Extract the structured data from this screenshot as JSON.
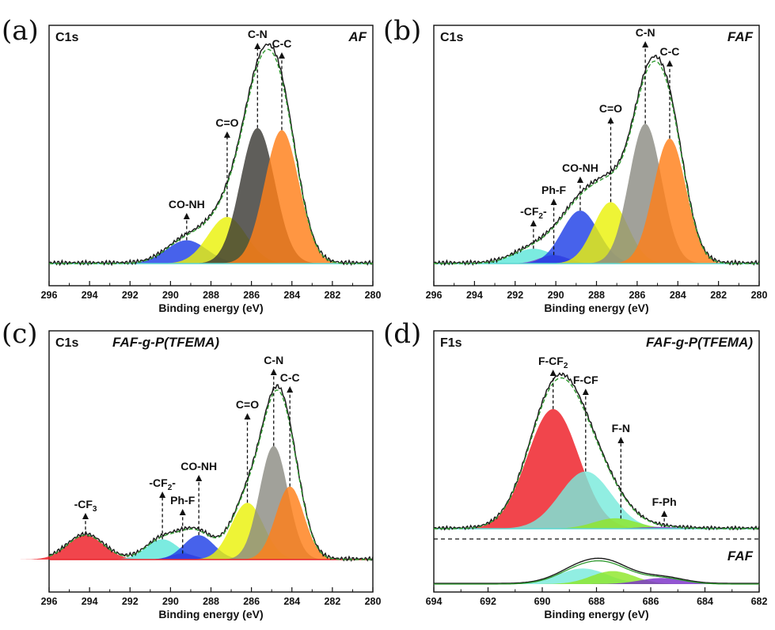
{
  "chart_data": [
    {
      "type": "area",
      "panel_label": "(a)",
      "core_level": "C1s",
      "sample": "AF",
      "xlabel": "Binding energy (eV)",
      "ylabel": "",
      "xlim": [
        296,
        280
      ],
      "xticks": [
        "296",
        "294",
        "292",
        "290",
        "288",
        "286",
        "284",
        "282",
        "280"
      ],
      "ylim": [
        0,
        1.05
      ],
      "components": [
        {
          "label": "CO-NH",
          "center": 289.2,
          "height": 0.11,
          "width": 1.0,
          "color": "#1f3fe6"
        },
        {
          "label": "C=O",
          "center": 287.2,
          "height": 0.22,
          "width": 0.95,
          "color": "#eaf20a"
        },
        {
          "label": "C-N",
          "center": 285.7,
          "height": 0.64,
          "width": 0.85,
          "color": "#3c3a36"
        },
        {
          "label": "C-C",
          "center": 284.5,
          "height": 0.63,
          "width": 0.85,
          "color": "#ff7f18"
        }
      ],
      "annotations": [
        {
          "text": "CO-NH",
          "x": 289.2
        },
        {
          "text": "C=O",
          "x": 287.2
        },
        {
          "text": "C-N",
          "x": 285.7
        },
        {
          "text": "C-C",
          "x": 284.5
        }
      ]
    },
    {
      "type": "area",
      "panel_label": "(b)",
      "core_level": "C1s",
      "sample": "FAF",
      "xlabel": "Binding energy (eV)",
      "ylabel": "",
      "xlim": [
        296,
        280
      ],
      "xticks": [
        "296",
        "294",
        "292",
        "290",
        "288",
        "286",
        "284",
        "282",
        "280"
      ],
      "ylim": [
        0,
        1.05
      ],
      "components": [
        {
          "label": "-CF2-",
          "center": 291.1,
          "height": 0.07,
          "width": 1.0,
          "color": "#5ee6d9"
        },
        {
          "label": "Ph-F",
          "center": 290.1,
          "height": 0.04,
          "width": 0.7,
          "color": "#7b2fc9"
        },
        {
          "label": "CO-NH",
          "center": 288.8,
          "height": 0.25,
          "width": 0.9,
          "color": "#1f3fe6"
        },
        {
          "label": "C=O",
          "center": 287.3,
          "height": 0.29,
          "width": 0.85,
          "color": "#eaf20a"
        },
        {
          "label": "C-N",
          "center": 285.6,
          "height": 0.66,
          "width": 0.8,
          "color": "#8c8c84"
        },
        {
          "label": "C-C",
          "center": 284.4,
          "height": 0.59,
          "width": 0.8,
          "color": "#ff7f18"
        }
      ],
      "annotations": [
        {
          "text": "-CF",
          "sub": "2",
          "suffix": "-",
          "x": 291.1
        },
        {
          "text": "Ph-F",
          "x": 290.1
        },
        {
          "text": "CO-NH",
          "x": 288.8
        },
        {
          "text": "C=O",
          "x": 287.3
        },
        {
          "text": "C-N",
          "x": 285.6
        },
        {
          "text": "C-C",
          "x": 284.4
        }
      ]
    },
    {
      "type": "area",
      "panel_label": "(c)",
      "core_level": "C1s",
      "sample": "FAF-g-P(TFEMA)",
      "xlabel": "Binding energy (eV)",
      "ylabel": "",
      "xlim": [
        296,
        280
      ],
      "xticks": [
        "296",
        "294",
        "292",
        "290",
        "288",
        "286",
        "284",
        "282",
        "280"
      ],
      "ylim": [
        0,
        1.05
      ],
      "components": [
        {
          "label": "-CF3",
          "center": 294.2,
          "height": 0.12,
          "width": 0.9,
          "color": "#ee1c24"
        },
        {
          "label": "-CF2-",
          "center": 290.4,
          "height": 0.1,
          "width": 0.8,
          "color": "#5ee6d9"
        },
        {
          "label": "Ph-F",
          "center": 289.4,
          "height": 0.03,
          "width": 0.6,
          "color": "#7b2fc9"
        },
        {
          "label": "CO-NH",
          "center": 288.6,
          "height": 0.12,
          "width": 0.75,
          "color": "#1f3fe6"
        },
        {
          "label": "C=O",
          "center": 286.2,
          "height": 0.28,
          "width": 0.8,
          "color": "#eaf20a"
        },
        {
          "label": "C-N",
          "center": 284.9,
          "height": 0.56,
          "width": 0.7,
          "color": "#8c8c84"
        },
        {
          "label": "C-C",
          "center": 284.1,
          "height": 0.36,
          "width": 0.7,
          "color": "#ff7f18"
        }
      ],
      "annotations": [
        {
          "text": "-CF",
          "sub": "3",
          "suffix": "",
          "x": 294.2
        },
        {
          "text": "-CF",
          "sub": "2",
          "suffix": "-",
          "x": 290.4
        },
        {
          "text": "Ph-F",
          "x": 289.4
        },
        {
          "text": "CO-NH",
          "x": 288.6
        },
        {
          "text": "C=O",
          "x": 286.2
        },
        {
          "text": "C-N",
          "x": 284.9
        },
        {
          "text": "C-C",
          "x": 284.1
        }
      ]
    },
    {
      "type": "area",
      "panel_label": "(d)",
      "core_level": "F1s",
      "sample": "FAF-g-P(TFEMA)",
      "second_sample": "FAF",
      "xlabel": "Binding energy (eV)",
      "ylabel": "",
      "xlim": [
        694,
        682
      ],
      "xticks": [
        "694",
        "692",
        "690",
        "688",
        "686",
        "684",
        "682"
      ],
      "ylim": [
        0,
        1.05
      ],
      "components": [
        {
          "label": "F-CF2",
          "center": 689.6,
          "height": 0.69,
          "width": 0.95,
          "color": "#ee1c24"
        },
        {
          "label": "F-CF",
          "center": 688.4,
          "height": 0.33,
          "width": 0.95,
          "color": "#79eadc"
        },
        {
          "label": "F-N",
          "center": 687.3,
          "height": 0.06,
          "width": 0.8,
          "color": "#8ee62a"
        },
        {
          "label": "F-Ph",
          "center": 685.7,
          "height": 0.01,
          "width": 0.8,
          "color": "#7b2fc9"
        }
      ],
      "lower_components": [
        {
          "label": "F-CF",
          "center": 688.5,
          "height": 0.09,
          "width": 0.9,
          "color": "#79eadc"
        },
        {
          "label": "F-N",
          "center": 687.4,
          "height": 0.075,
          "width": 0.8,
          "color": "#8ee62a"
        },
        {
          "label": "F-Ph",
          "center": 685.6,
          "height": 0.035,
          "width": 0.8,
          "color": "#7b2fc9"
        }
      ],
      "annotations": [
        {
          "text": "F-CF",
          "sub": "2",
          "suffix": "",
          "x": 689.6
        },
        {
          "text": "F-CF",
          "x": 688.4
        },
        {
          "text": "F-N",
          "x": 687.1
        },
        {
          "text": "F-Ph",
          "x": 685.5
        }
      ]
    }
  ]
}
